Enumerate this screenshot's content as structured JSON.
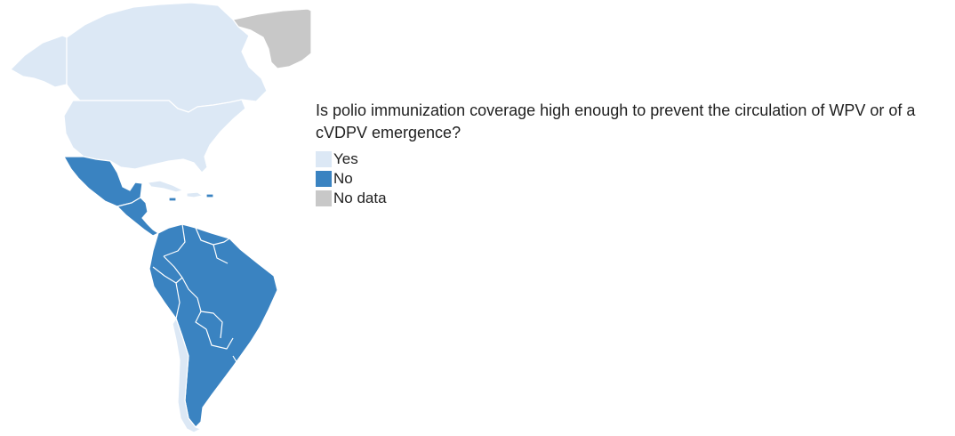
{
  "legend": {
    "title": "Is polio immunization coverage high enough to prevent the circulation of WPV or of a cVDPV emergence?",
    "items": [
      {
        "label": "Yes",
        "color": "#dce8f5"
      },
      {
        "label": "No",
        "color": "#3a83c1"
      },
      {
        "label": "No data",
        "color": "#c8c8c8"
      }
    ]
  },
  "map": {
    "border_color": "#ffffff",
    "regions": [
      {
        "name": "canada",
        "status": "Yes"
      },
      {
        "name": "greenland",
        "status": "No data"
      },
      {
        "name": "united-states",
        "status": "Yes"
      },
      {
        "name": "alaska",
        "status": "Yes"
      },
      {
        "name": "mexico",
        "status": "No"
      },
      {
        "name": "central-america",
        "status": "No"
      },
      {
        "name": "cuba",
        "status": "Yes"
      },
      {
        "name": "hispaniola",
        "status": "Yes"
      },
      {
        "name": "caribbean-small",
        "status": "No"
      },
      {
        "name": "south-america",
        "status": "No"
      },
      {
        "name": "chile",
        "status": "Yes"
      }
    ]
  }
}
